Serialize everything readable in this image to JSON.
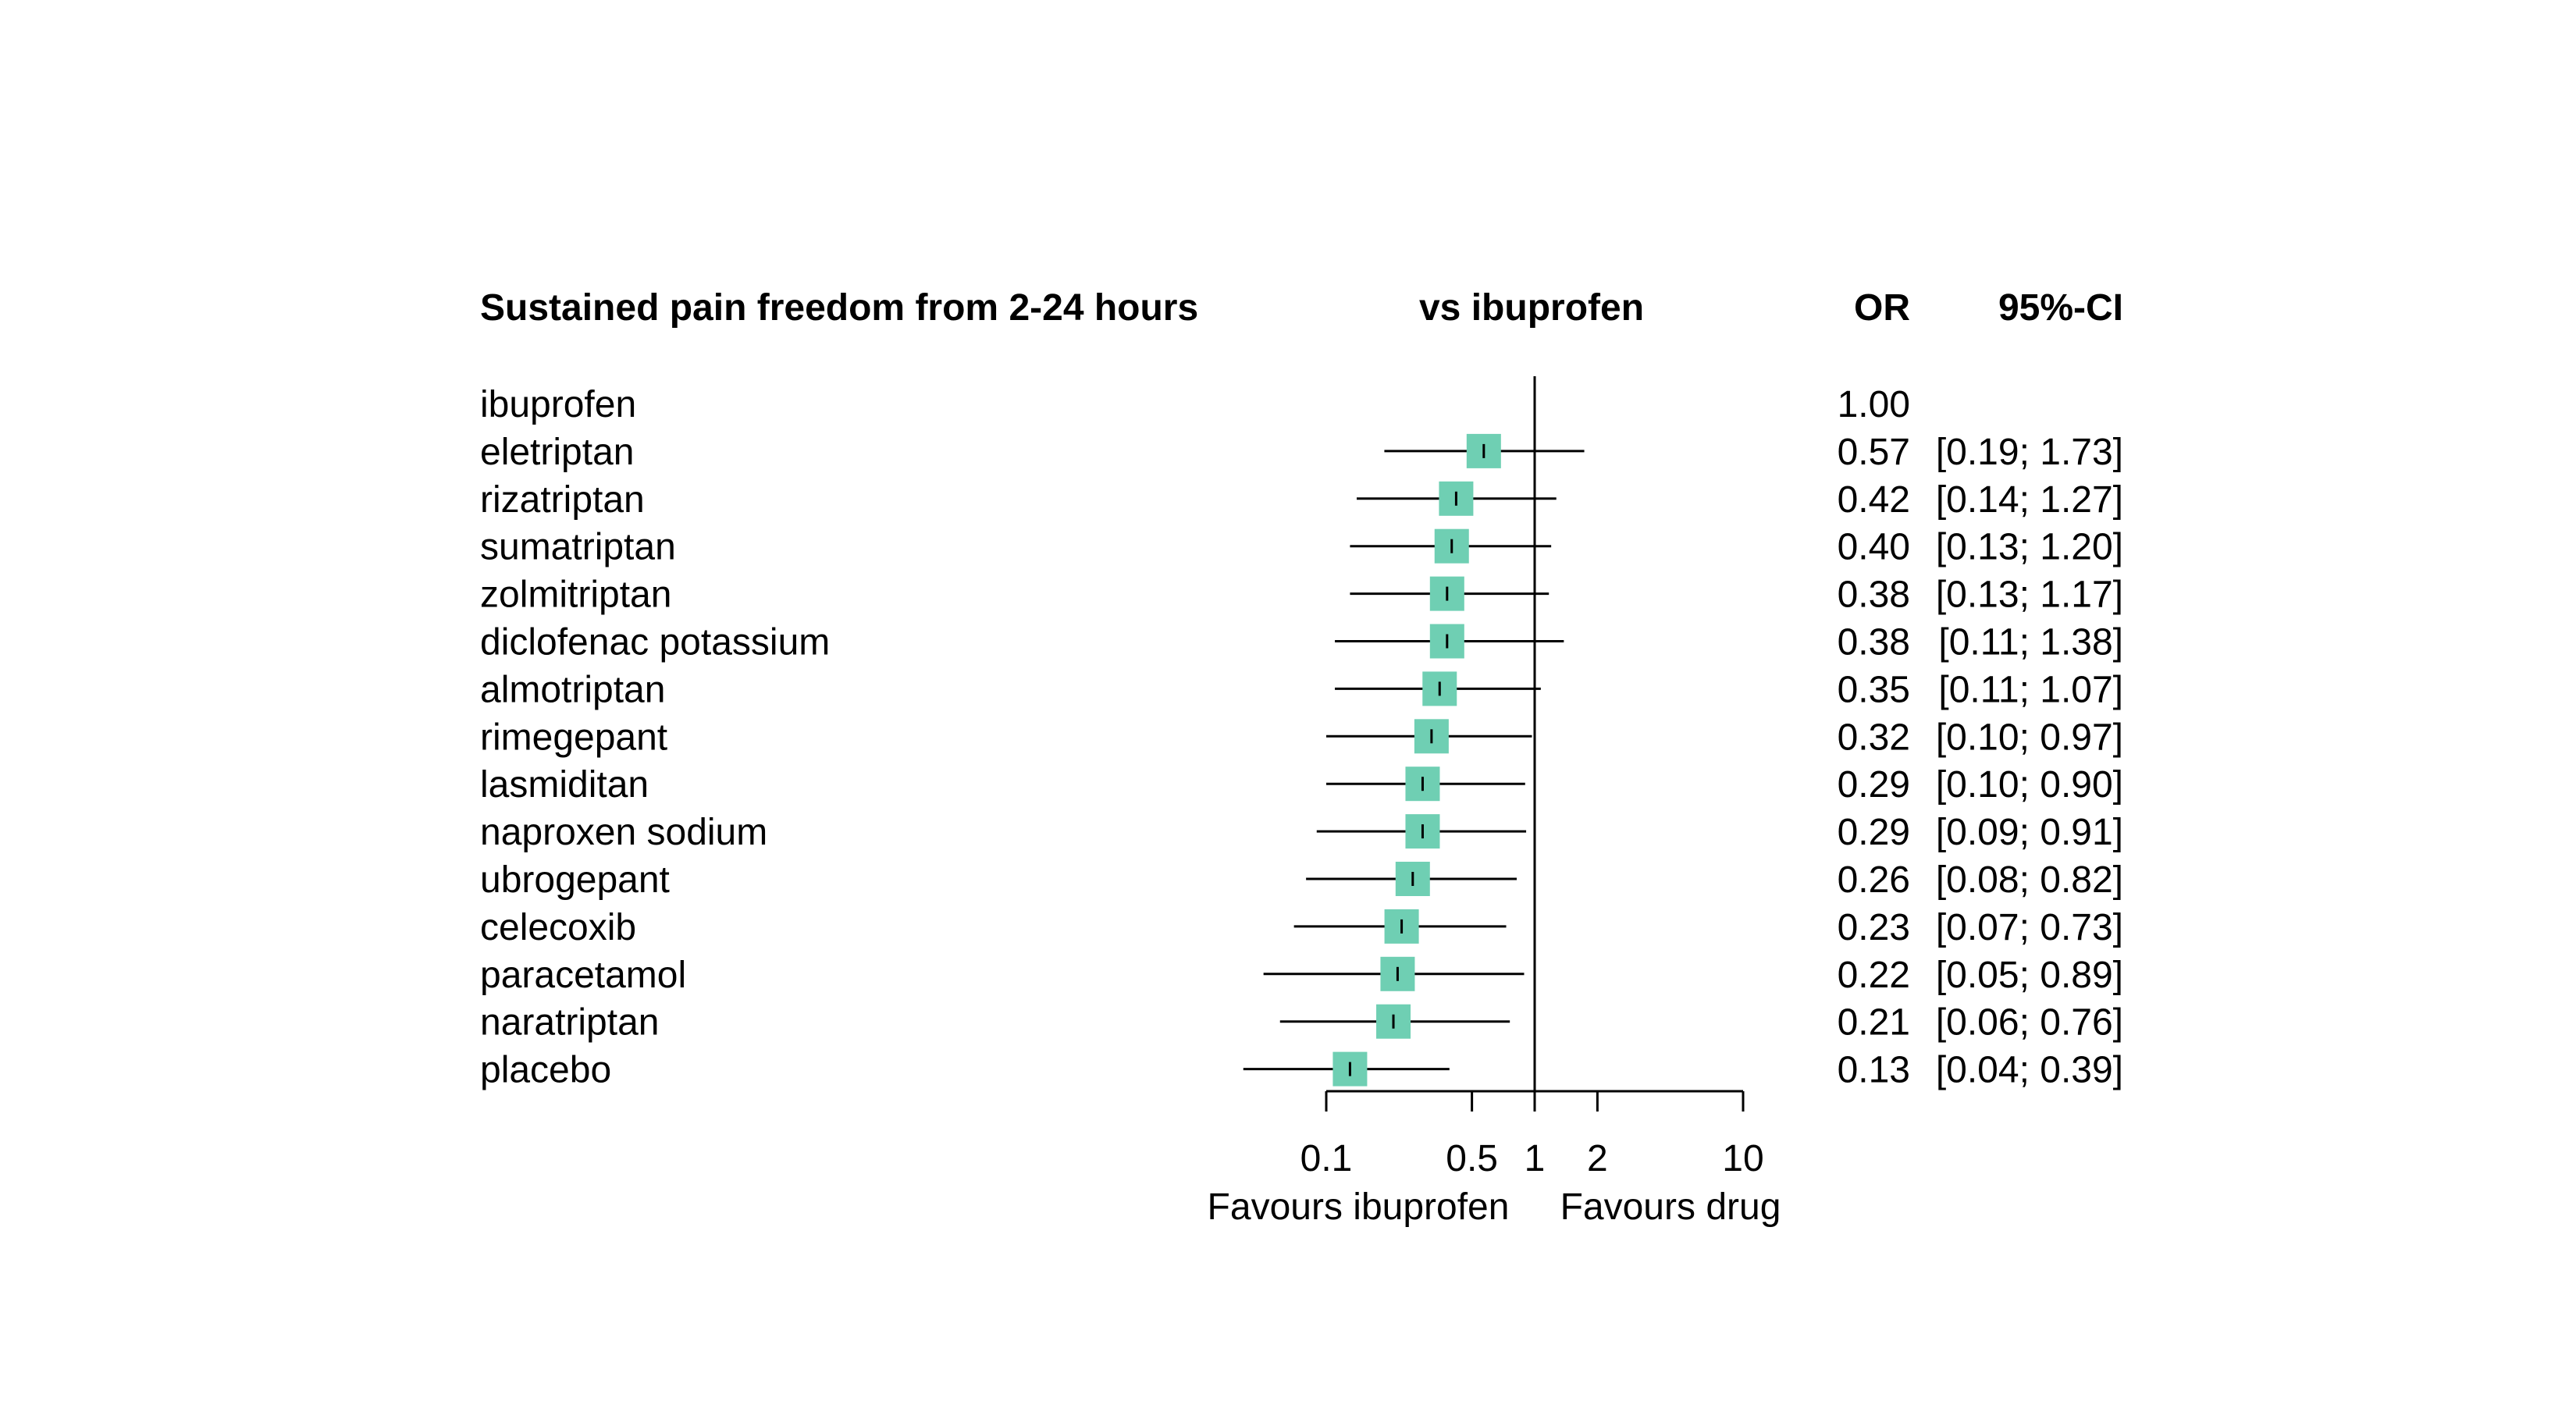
{
  "chart_data": {
    "type": "forest",
    "title": "Sustained pain freedom from 2-24 hours",
    "comparison_header": "vs ibuprofen",
    "or_header": "OR",
    "ci_header": "95%-CI",
    "x_scale": "log",
    "xlim": [
      0.1,
      10
    ],
    "x_ticks": [
      {
        "value": 0.1,
        "label": "0.1"
      },
      {
        "value": 0.5,
        "label": "0.5"
      },
      {
        "value": 1,
        "label": "1"
      },
      {
        "value": 2,
        "label": "2"
      },
      {
        "value": 10,
        "label": "10"
      }
    ],
    "reference_line": 1,
    "left_favour_label": "Favours ibuprofen",
    "right_favour_label": "Favours drug",
    "marker_color": "#6fcfb3",
    "rows": [
      {
        "label": "ibuprofen",
        "or": null,
        "lo": null,
        "hi": null,
        "or_text": "1.00",
        "ci_text": ""
      },
      {
        "label": "eletriptan",
        "or": 0.57,
        "lo": 0.19,
        "hi": 1.73,
        "or_text": "0.57",
        "ci_text": "[0.19; 1.73]"
      },
      {
        "label": "rizatriptan",
        "or": 0.42,
        "lo": 0.14,
        "hi": 1.27,
        "or_text": "0.42",
        "ci_text": "[0.14; 1.27]"
      },
      {
        "label": "sumatriptan",
        "or": 0.4,
        "lo": 0.13,
        "hi": 1.2,
        "or_text": "0.40",
        "ci_text": "[0.13; 1.20]"
      },
      {
        "label": "zolmitriptan",
        "or": 0.38,
        "lo": 0.13,
        "hi": 1.17,
        "or_text": "0.38",
        "ci_text": "[0.13; 1.17]"
      },
      {
        "label": "diclofenac potassium",
        "or": 0.38,
        "lo": 0.11,
        "hi": 1.38,
        "or_text": "0.38",
        "ci_text": "[0.11; 1.38]"
      },
      {
        "label": "almotriptan",
        "or": 0.35,
        "lo": 0.11,
        "hi": 1.07,
        "or_text": "0.35",
        "ci_text": "[0.11; 1.07]"
      },
      {
        "label": "rimegepant",
        "or": 0.32,
        "lo": 0.1,
        "hi": 0.97,
        "or_text": "0.32",
        "ci_text": "[0.10; 0.97]"
      },
      {
        "label": "lasmiditan",
        "or": 0.29,
        "lo": 0.1,
        "hi": 0.9,
        "or_text": "0.29",
        "ci_text": "[0.10; 0.90]"
      },
      {
        "label": "naproxen sodium",
        "or": 0.29,
        "lo": 0.09,
        "hi": 0.91,
        "or_text": "0.29",
        "ci_text": "[0.09; 0.91]"
      },
      {
        "label": "ubrogepant",
        "or": 0.26,
        "lo": 0.08,
        "hi": 0.82,
        "or_text": "0.26",
        "ci_text": "[0.08; 0.82]"
      },
      {
        "label": "celecoxib",
        "or": 0.23,
        "lo": 0.07,
        "hi": 0.73,
        "or_text": "0.23",
        "ci_text": "[0.07; 0.73]"
      },
      {
        "label": "paracetamol",
        "or": 0.22,
        "lo": 0.05,
        "hi": 0.89,
        "or_text": "0.22",
        "ci_text": "[0.05; 0.89]"
      },
      {
        "label": "naratriptan",
        "or": 0.21,
        "lo": 0.06,
        "hi": 0.76,
        "or_text": "0.21",
        "ci_text": "[0.06; 0.76]"
      },
      {
        "label": "placebo",
        "or": 0.13,
        "lo": 0.04,
        "hi": 0.39,
        "or_text": "0.13",
        "ci_text": "[0.04; 0.39]"
      }
    ]
  }
}
